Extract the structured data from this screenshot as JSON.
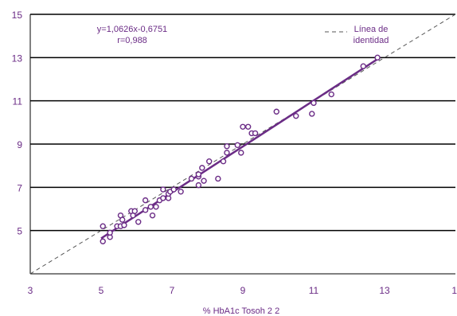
{
  "chart_data": {
    "type": "scatter",
    "xlabel": "% HbA1c Tosoh 2 2",
    "ylabel": "",
    "xlim": [
      3,
      15
    ],
    "ylim": [
      3,
      15
    ],
    "x_ticks": [
      "3",
      "5",
      "7",
      "9",
      "11",
      "13",
      "1"
    ],
    "y_ticks": [
      "5",
      "7",
      "9",
      "11",
      "13",
      "15"
    ],
    "grid": "horizontal",
    "equation_label": "y=1,0626x-0,6751",
    "r_label": "r=0,988",
    "identity_legend": [
      "Línea de",
      "identidad"
    ],
    "regression": {
      "slope": 1.0626,
      "intercept": -0.6751,
      "x_range": [
        5.0,
        12.8
      ]
    },
    "identity_line": {
      "x_range": [
        3,
        15
      ]
    },
    "points": [
      [
        5.05,
        5.2
      ],
      [
        5.05,
        4.5
      ],
      [
        5.25,
        4.7
      ],
      [
        5.25,
        4.9
      ],
      [
        5.45,
        5.2
      ],
      [
        5.55,
        5.2
      ],
      [
        5.55,
        5.7
      ],
      [
        5.6,
        5.5
      ],
      [
        5.65,
        5.25
      ],
      [
        5.85,
        5.9
      ],
      [
        5.9,
        5.7
      ],
      [
        5.95,
        5.9
      ],
      [
        6.05,
        5.4
      ],
      [
        6.25,
        6.4
      ],
      [
        6.25,
        5.95
      ],
      [
        6.4,
        6.1
      ],
      [
        6.45,
        5.7
      ],
      [
        6.55,
        6.1
      ],
      [
        6.65,
        6.4
      ],
      [
        6.75,
        6.5
      ],
      [
        6.75,
        6.9
      ],
      [
        6.9,
        6.5
      ],
      [
        6.9,
        6.7
      ],
      [
        6.95,
        6.8
      ],
      [
        7.05,
        6.9
      ],
      [
        7.25,
        6.8
      ],
      [
        7.55,
        7.4
      ],
      [
        7.75,
        7.5
      ],
      [
        7.75,
        7.1
      ],
      [
        7.75,
        7.6
      ],
      [
        7.85,
        7.9
      ],
      [
        7.9,
        7.3
      ],
      [
        8.05,
        8.2
      ],
      [
        8.3,
        7.4
      ],
      [
        8.45,
        8.2
      ],
      [
        8.55,
        8.9
      ],
      [
        8.55,
        8.6
      ],
      [
        8.85,
        8.95
      ],
      [
        8.95,
        8.6
      ],
      [
        9.0,
        9.8
      ],
      [
        9.15,
        9.8
      ],
      [
        9.25,
        9.5
      ],
      [
        9.35,
        9.5
      ],
      [
        9.95,
        10.5
      ],
      [
        10.5,
        10.3
      ],
      [
        10.95,
        10.4
      ],
      [
        11.0,
        10.9
      ],
      [
        11.5,
        11.3
      ],
      [
        12.4,
        12.6
      ],
      [
        12.8,
        13.0
      ]
    ],
    "colors": {
      "primary": "#6b2c86",
      "grid": "#000000",
      "identity": "#555555"
    }
  }
}
